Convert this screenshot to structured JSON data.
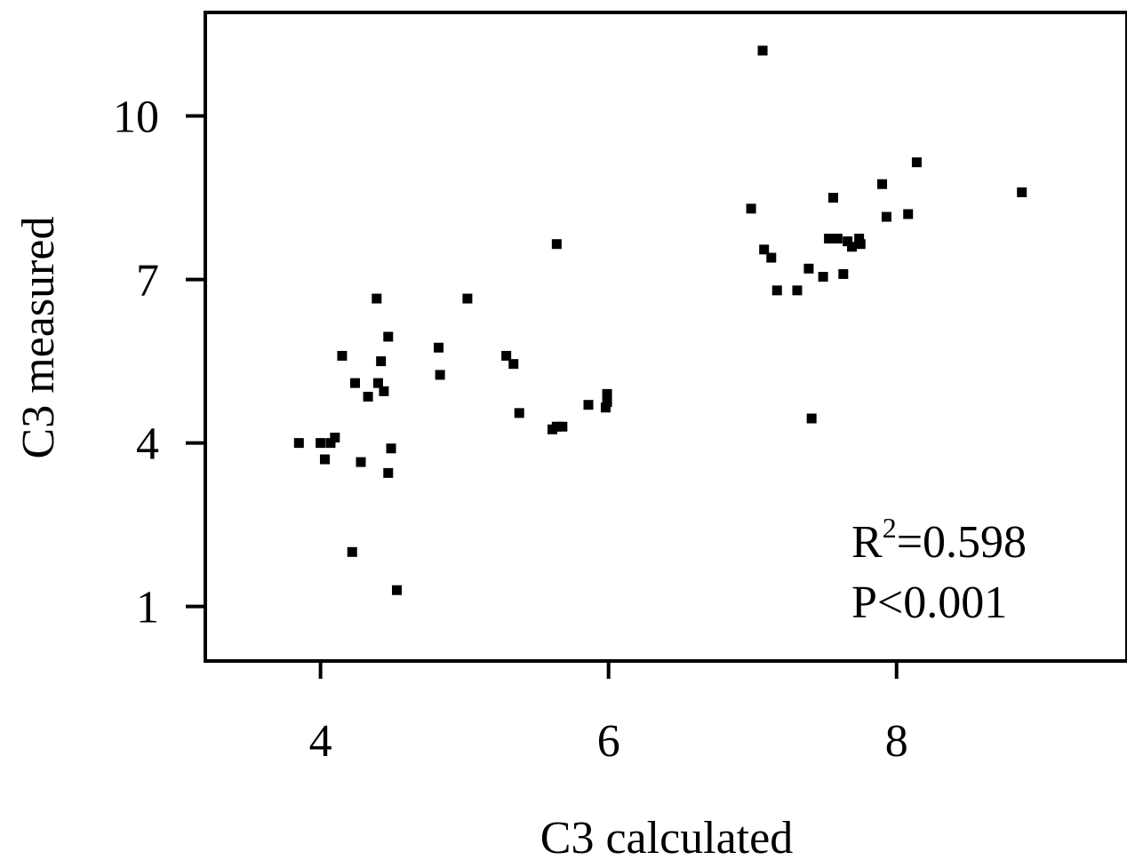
{
  "chart_data": {
    "type": "scatter",
    "xlabel": "C3 calculated",
    "ylabel": "C3 measured",
    "xlim": [
      3.2,
      9.6
    ],
    "ylim": [
      0.0,
      11.9
    ],
    "xticks": [
      4,
      6,
      8
    ],
    "yticks": [
      1,
      4,
      7,
      10
    ],
    "grid": false,
    "annotations": [
      {
        "name": "r-squared",
        "prefix": "R",
        "sup": "2",
        "text": "=0.598"
      },
      {
        "name": "p-value",
        "text": "P<0.001"
      }
    ],
    "series": [
      {
        "points": [
          [
            3.85,
            4.0
          ],
          [
            4.0,
            4.0
          ],
          [
            4.03,
            3.7
          ],
          [
            4.07,
            4.0
          ],
          [
            4.1,
            4.1
          ],
          [
            4.15,
            5.6
          ],
          [
            4.22,
            2.0
          ],
          [
            4.24,
            5.1
          ],
          [
            4.28,
            3.65
          ],
          [
            4.33,
            4.85
          ],
          [
            4.39,
            6.65
          ],
          [
            4.4,
            5.1
          ],
          [
            4.42,
            5.5
          ],
          [
            4.44,
            4.95
          ],
          [
            4.47,
            5.95
          ],
          [
            4.47,
            3.45
          ],
          [
            4.49,
            3.9
          ],
          [
            4.53,
            1.3
          ],
          [
            4.82,
            5.75
          ],
          [
            4.83,
            5.25
          ],
          [
            5.02,
            6.65
          ],
          [
            5.29,
            5.6
          ],
          [
            5.34,
            5.45
          ],
          [
            5.38,
            4.55
          ],
          [
            5.61,
            4.25
          ],
          [
            5.64,
            4.3
          ],
          [
            5.68,
            4.3
          ],
          [
            5.64,
            7.65
          ],
          [
            5.86,
            4.7
          ],
          [
            5.98,
            4.65
          ],
          [
            5.99,
            4.75
          ],
          [
            5.99,
            4.9
          ],
          [
            6.99,
            8.3
          ],
          [
            7.07,
            11.2
          ],
          [
            7.08,
            7.55
          ],
          [
            7.13,
            7.4
          ],
          [
            7.17,
            6.8
          ],
          [
            7.31,
            6.8
          ],
          [
            7.39,
            7.2
          ],
          [
            7.41,
            4.45
          ],
          [
            7.49,
            7.05
          ],
          [
            7.53,
            7.75
          ],
          [
            7.56,
            8.5
          ],
          [
            7.59,
            7.75
          ],
          [
            7.63,
            7.1
          ],
          [
            7.66,
            7.7
          ],
          [
            7.69,
            7.6
          ],
          [
            7.74,
            7.75
          ],
          [
            7.75,
            7.65
          ],
          [
            7.9,
            8.75
          ],
          [
            7.93,
            8.15
          ],
          [
            8.08,
            8.2
          ],
          [
            8.14,
            9.15
          ],
          [
            8.87,
            8.6
          ]
        ]
      }
    ]
  }
}
